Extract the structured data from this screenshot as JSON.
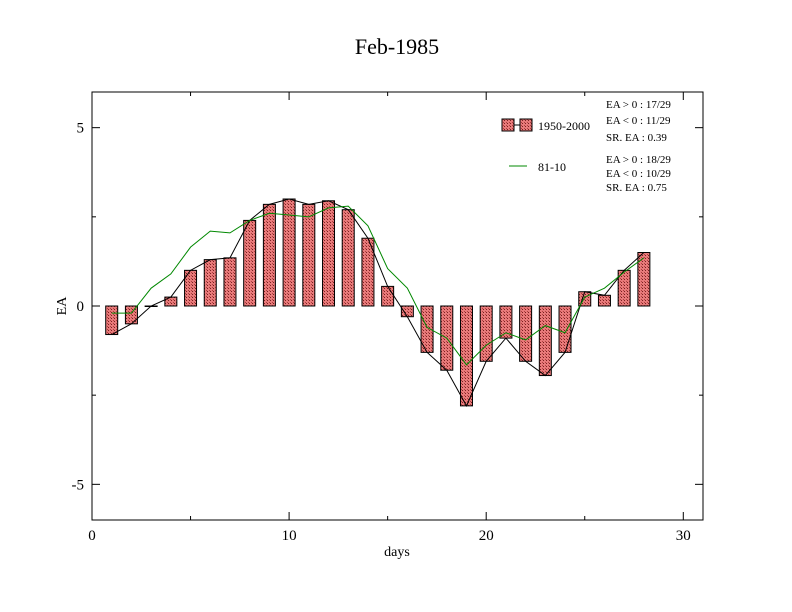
{
  "chart_data": {
    "type": "bar",
    "title": "Feb-1985",
    "xlabel": "days",
    "ylabel": "EA",
    "xlim": [
      0,
      31
    ],
    "ylim": [
      -6,
      6
    ],
    "xticks": [
      0,
      10,
      20,
      30
    ],
    "yticks": [
      5,
      0,
      -5
    ],
    "x": [
      1,
      2,
      3,
      4,
      5,
      6,
      7,
      8,
      9,
      10,
      11,
      12,
      13,
      14,
      15,
      16,
      17,
      18,
      19,
      20,
      21,
      22,
      23,
      24,
      25,
      26,
      27,
      28
    ],
    "series": [
      {
        "name": "1950-2000",
        "kind": "bar+line",
        "color": "#e06666",
        "line_color": "#000000",
        "values": [
          -0.8,
          -0.5,
          0.0,
          0.25,
          1.0,
          1.3,
          1.35,
          2.4,
          2.85,
          3.0,
          2.85,
          2.95,
          2.7,
          1.9,
          0.55,
          -0.3,
          -1.3,
          -1.8,
          -2.8,
          -1.55,
          -0.9,
          -1.55,
          -1.95,
          -1.3,
          0.4,
          0.3,
          1.0,
          1.5
        ]
      },
      {
        "name": "81-10",
        "kind": "line",
        "color": "#008800",
        "values": [
          -0.2,
          -0.2,
          0.5,
          0.9,
          1.65,
          2.1,
          2.05,
          2.4,
          2.6,
          2.55,
          2.5,
          2.75,
          2.8,
          2.25,
          1.05,
          0.5,
          -0.6,
          -0.9,
          -1.65,
          -1.1,
          -0.75,
          -0.95,
          -0.55,
          -0.75,
          0.25,
          0.5,
          0.95,
          1.35
        ]
      }
    ],
    "legend_position": "top-right",
    "legend_entries": [
      "1950-2000",
      "81-10"
    ],
    "stats": [
      [
        "EA > 0 : 17/29",
        "EA < 0 : 11/29",
        "SR. EA :  0.39"
      ],
      [
        "EA > 0 : 18/29",
        "EA < 0 : 10/29",
        "SR. EA :  0.75"
      ]
    ],
    "grid": false
  }
}
